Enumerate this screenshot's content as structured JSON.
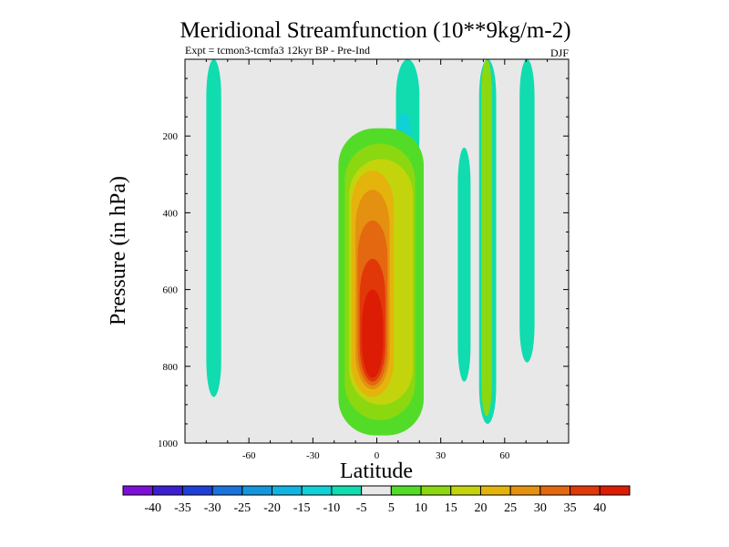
{
  "chart_data": {
    "type": "heatmap",
    "title": "Meridional Streamfunction (10**9kg/m-2)",
    "subtitle_left": "Expt = tcmon3-tcmfa3     12kyr BP - Pre-Ind",
    "subtitle_right": "DJF",
    "xlabel": "Latitude",
    "ylabel": "Pressure (in hPa)",
    "xlim": [
      -90,
      90
    ],
    "ylim": [
      1000,
      0
    ],
    "x_ticks": [
      -60,
      -30,
      0,
      30,
      60
    ],
    "x_tick_labels": [
      "-60",
      "-30",
      "0",
      "30",
      "60"
    ],
    "y_ticks": [
      200,
      400,
      600,
      800,
      1000
    ],
    "y_tick_labels": [
      "200",
      "400",
      "600",
      "800",
      "1000"
    ],
    "background_color": "#e8e8e8",
    "colorbar": {
      "levels": [
        -40,
        -35,
        -30,
        -25,
        -20,
        -15,
        -10,
        -5,
        5,
        10,
        15,
        20,
        25,
        30,
        35,
        40
      ],
      "labels": [
        "-40",
        "-35",
        "-30",
        "-25",
        "-20",
        "-15",
        "-10",
        "-5",
        "5",
        "10",
        "15",
        "20",
        "25",
        "30",
        "35",
        "40"
      ],
      "colors": [
        "#7d10d8",
        "#3c20d0",
        "#1e40d8",
        "#1a72dc",
        "#1496dc",
        "#10b4e0",
        "#10d0d8",
        "#10dcb0",
        "#e8e8e8",
        "#52dc28",
        "#8cd810",
        "#c4d40c",
        "#e4b40c",
        "#e49010",
        "#e46810",
        "#e03808",
        "#dc1c04"
      ]
    },
    "cells": [
      {
        "lat_min": -80,
        "lat_max": -73,
        "p_min": 0,
        "p_max": 880,
        "value": -7
      },
      {
        "lat_min": 48,
        "lat_max": 56,
        "p_min": 0,
        "p_max": 950,
        "value": -7
      },
      {
        "lat_min": 67,
        "lat_max": 74,
        "p_min": 0,
        "p_max": 790,
        "value": -7
      },
      {
        "lat_min": 38,
        "lat_max": 44,
        "p_min": 230,
        "p_max": 840,
        "value": -7
      },
      {
        "lat_min": 9,
        "lat_max": 20,
        "p_min": 0,
        "p_max": 300,
        "value": -7
      },
      {
        "lat_min": 9,
        "lat_max": 16,
        "p_min": 140,
        "p_max": 250,
        "value": -11
      },
      {
        "lat_min": 49,
        "lat_max": 54,
        "p_min": 0,
        "p_max": 930,
        "value": 12
      },
      {
        "lat_min": -18,
        "lat_max": 22,
        "p_min": 180,
        "p_max": 980,
        "value": 7
      },
      {
        "lat_min": -15,
        "lat_max": 18,
        "p_min": 220,
        "p_max": 940,
        "value": 13
      },
      {
        "lat_min": -13,
        "lat_max": 17,
        "p_min": 260,
        "p_max": 900,
        "value": 18
      },
      {
        "lat_min": -12,
        "lat_max": 8,
        "p_min": 290,
        "p_max": 880,
        "value": 23
      },
      {
        "lat_min": -10,
        "lat_max": 6,
        "p_min": 340,
        "p_max": 860,
        "value": 28
      },
      {
        "lat_min": -9,
        "lat_max": 5,
        "p_min": 420,
        "p_max": 850,
        "value": 32
      },
      {
        "lat_min": -8,
        "lat_max": 4,
        "p_min": 520,
        "p_max": 840,
        "value": 37
      },
      {
        "lat_min": -7,
        "lat_max": 3,
        "p_min": 600,
        "p_max": 830,
        "value": 42
      }
    ]
  }
}
